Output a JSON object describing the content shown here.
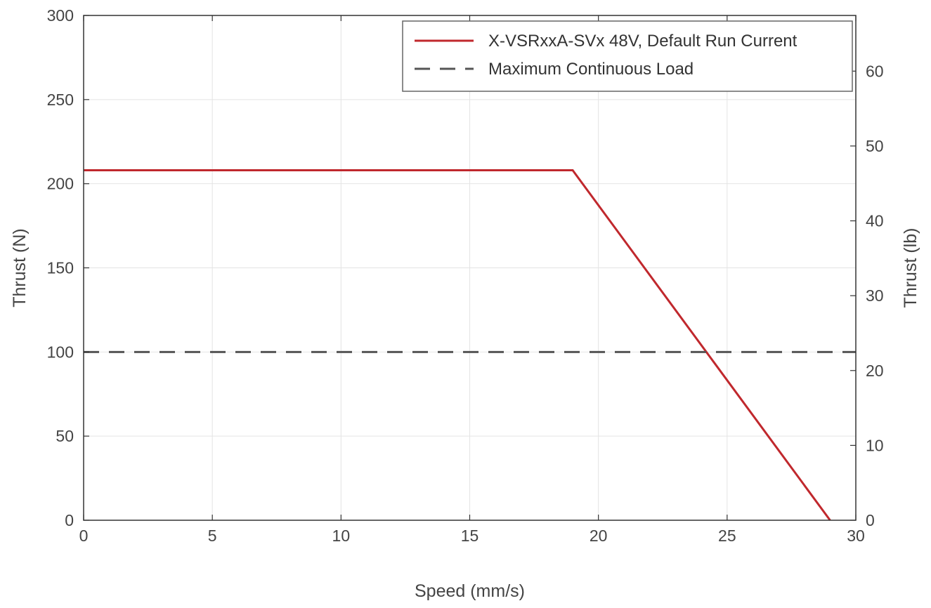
{
  "chart_data": {
    "type": "line",
    "title": "",
    "xlabel": "Speed (mm/s)",
    "ylabel": "Thrust (N)",
    "y2label": "Thrust (lb)",
    "xlim": [
      0,
      30
    ],
    "ylim": [
      0,
      300
    ],
    "y2lim": [
      0,
      67.44
    ],
    "xticks": [
      "0",
      "5",
      "10",
      "15",
      "20",
      "25",
      "30"
    ],
    "yticks": [
      "0",
      "50",
      "100",
      "150",
      "200",
      "250",
      "300"
    ],
    "y2ticks": [
      "0",
      "10",
      "20",
      "30",
      "40",
      "50",
      "60"
    ],
    "grid": true,
    "legend_position": "top-right",
    "series": [
      {
        "name": "X-VSRxxA-SVx 48V, Default Run Current",
        "x": [
          0,
          19,
          29
        ],
        "y": [
          208,
          208,
          0
        ],
        "color": "#c0282d",
        "style": "solid"
      },
      {
        "name": "Maximum Continuous Load",
        "x": [
          0,
          30
        ],
        "y": [
          100,
          100
        ],
        "color": "#555555",
        "style": "dashed"
      }
    ]
  }
}
